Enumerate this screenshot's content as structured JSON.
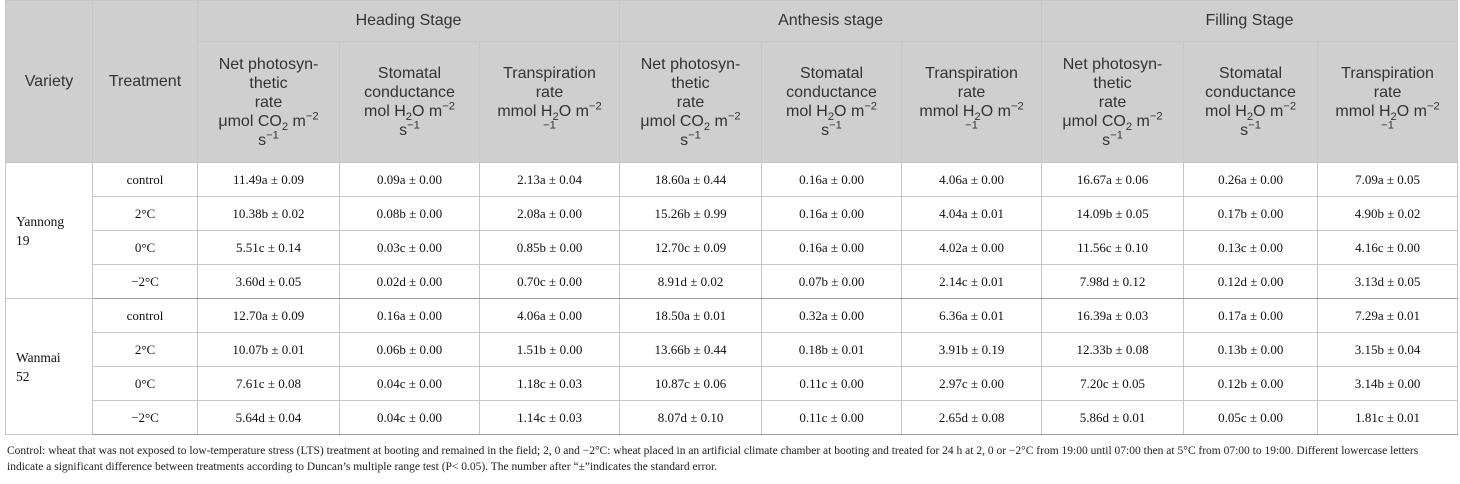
{
  "header": {
    "variety": "Variety",
    "treatment": "Treatment",
    "stages": [
      "Heading Stage",
      "Anthesis stage",
      "Filling Stage"
    ],
    "measures": [
      {
        "l1": "Net photosyn-",
        "l2": "thetic",
        "l3": "rate",
        "l4a": "μmol CO",
        "l4sub": "2",
        "l4b": " m",
        "l4sup": "−2",
        "l5a": "s",
        "l5sup": "−1"
      },
      {
        "l1": "Stomatal",
        "l2": "conductance",
        "l3a": "mol H",
        "l3sub": "2",
        "l3b": "O m",
        "l3sup": "−2",
        "l4a": "s",
        "l4sup": "−1"
      },
      {
        "l1": "Transpiration",
        "l2": "rate",
        "l3a": "mmol H",
        "l3sub": "2",
        "l3b": "O m",
        "l3sup": "−2",
        "l4a": "",
        "l4sup": "−1"
      }
    ]
  },
  "groups": [
    {
      "variety_line1": "Yannong",
      "variety_line2": "19",
      "rows": [
        {
          "treatment": "control",
          "values": [
            "11.49a ± 0.09",
            "0.09a ± 0.00",
            "2.13a ± 0.04",
            "18.60a ± 0.44",
            "0.16a ± 0.00",
            "4.06a ± 0.00",
            "16.67a ± 0.06",
            "0.26a ± 0.00",
            "7.09a ± 0.05"
          ]
        },
        {
          "treatment": "2°C",
          "values": [
            "10.38b ± 0.02",
            "0.08b ± 0.00",
            "2.08a ± 0.00",
            "15.26b ± 0.99",
            "0.16a ± 0.00",
            "4.04a ± 0.01",
            "14.09b ± 0.05",
            "0.17b ± 0.00",
            "4.90b ± 0.02"
          ]
        },
        {
          "treatment": "0°C",
          "values": [
            "5.51c ± 0.14",
            "0.03c ± 0.00",
            "0.85b ± 0.00",
            "12.70c ± 0.09",
            "0.16a ± 0.00",
            "4.02a ± 0.00",
            "11.56c ± 0.10",
            "0.13c ± 0.00",
            "4.16c ± 0.00"
          ]
        },
        {
          "treatment": "−2°C",
          "values": [
            "3.60d ± 0.05",
            "0.02d ± 0.00",
            "0.70c ± 0.00",
            "8.91d ± 0.02",
            "0.07b ± 0.00",
            "2.14c ± 0.01",
            "7.98d ± 0.12",
            "0.12d ± 0.00",
            "3.13d ± 0.05"
          ]
        }
      ]
    },
    {
      "variety_line1": "Wanmai",
      "variety_line2": "52",
      "rows": [
        {
          "treatment": "control",
          "values": [
            "12.70a ± 0.09",
            "0.16a ± 0.00",
            "4.06a ± 0.00",
            "18.50a ± 0.01",
            "0.32a ± 0.00",
            "6.36a ± 0.01",
            "16.39a ± 0.03",
            "0.17a ± 0.00",
            "7.29a ± 0.01"
          ]
        },
        {
          "treatment": "2°C",
          "values": [
            "10.07b ± 0.01",
            "0.06b ± 0.00",
            "1.51b ± 0.00",
            "13.66b ± 0.44",
            "0.18b ± 0.01",
            "3.91b ± 0.19",
            "12.33b ± 0.08",
            "0.13b ± 0.00",
            "3.15b ± 0.04"
          ]
        },
        {
          "treatment": "0°C",
          "values": [
            "7.61c ± 0.08",
            "0.04c ± 0.00",
            "1.18c ± 0.03",
            "10.87c ± 0.06",
            "0.11c ± 0.00",
            "2.97c ± 0.00",
            "7.20c ± 0.05",
            "0.12b ± 0.00",
            "3.14b ± 0.00"
          ]
        },
        {
          "treatment": "−2°C",
          "values": [
            "5.64d ± 0.04",
            "0.04c ± 0.00",
            "1.14c ± 0.03",
            "8.07d ± 0.10",
            "0.11c ± 0.00",
            "2.65d ± 0.08",
            "5.86d ± 0.01",
            "0.05c ± 0.00",
            "1.81c ± 0.01"
          ]
        }
      ]
    }
  ],
  "footnote": "Control: wheat that was not exposed to low-temperature stress (LTS) treatment at booting and remained in the field; 2, 0 and −2°C: wheat placed in an artificial climate chamber at booting and treated for 24 h at 2, 0 or −2°C from 19:00 until 07:00 then at 5°C from 07:00 to 19:00. Different lowercase letters indicate a significant difference between treatments according to Duncan’s multiple range test (P< 0.05). The number after “±”indicates the standard error."
}
